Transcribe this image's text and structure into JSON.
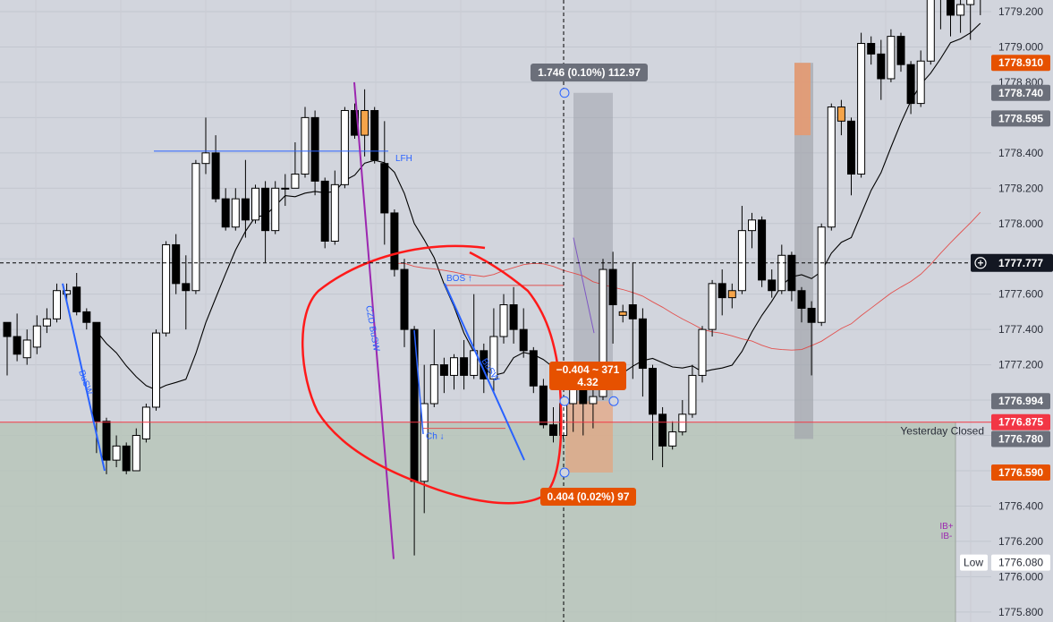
{
  "chart_data": {
    "type": "candlestick",
    "ylim": [
      1775.8,
      1779.3
    ],
    "y_ticks": [
      1779.2,
      1779.0,
      1778.8,
      1778.6,
      1778.4,
      1778.2,
      1778.0,
      1777.8,
      1777.6,
      1777.4,
      1777.2,
      1777.0,
      1776.8,
      1776.6,
      1776.4,
      1776.2,
      1776.0,
      1775.8
    ],
    "y_tick_labels": [
      "1779.200",
      "1779.000",
      "1778.800",
      "",
      "1778.400",
      "1778.200",
      "1778.000",
      "",
      "1777.600",
      "1777.400",
      "1777.200",
      "",
      "",
      "",
      "1776.400",
      "1776.200",
      "1776.000",
      "1775.800"
    ],
    "colors": {
      "up_fill": "#ffffff",
      "down_fill": "#000000",
      "highlight": "#f5a44a",
      "ma_fast": "#000000",
      "ma_slow": "#e53935",
      "annotation_blue": "#2962ff",
      "annotation_purple": "#9c27b0",
      "circle_red": "#ff1a1a",
      "badge_orange": "#e65100",
      "badge_red": "#f23645",
      "badge_gray": "#6b6f7a"
    },
    "candles": [
      [
        1777.44,
        1777.36,
        1777.14,
        1777.42
      ],
      [
        1777.36,
        1777.26,
        1777.22,
        1777.49
      ],
      [
        1777.24,
        1777.34,
        1777.2,
        1777.4
      ],
      [
        1777.3,
        1777.42,
        1777.26,
        1777.48
      ],
      [
        1777.42,
        1777.46,
        1777.38,
        1777.52
      ],
      [
        1777.46,
        1777.62,
        1777.44,
        1777.66
      ],
      [
        1777.6,
        1777.62,
        1777.56,
        1777.66
      ],
      [
        1777.64,
        1777.5,
        1777.48,
        1777.72
      ],
      [
        1777.5,
        1777.44,
        1777.4,
        1777.52
      ],
      [
        1777.44,
        1776.88,
        1776.7,
        1777.44
      ],
      [
        1776.88,
        1776.66,
        1776.58,
        1776.9
      ],
      [
        1776.66,
        1776.74,
        1776.62,
        1776.8
      ],
      [
        1776.74,
        1776.6,
        1776.58,
        1776.76
      ],
      [
        1776.6,
        1776.8,
        1776.6,
        1776.84
      ],
      [
        1776.78,
        1776.96,
        1776.76,
        1776.98
      ],
      [
        1776.96,
        1777.38,
        1776.94,
        1777.4
      ],
      [
        1777.38,
        1777.88,
        1777.36,
        1777.9
      ],
      [
        1777.88,
        1777.66,
        1777.6,
        1777.94
      ],
      [
        1777.66,
        1777.62,
        1777.4,
        1777.82
      ],
      [
        1777.62,
        1778.34,
        1777.6,
        1778.36
      ],
      [
        1778.34,
        1778.4,
        1778.28,
        1778.6
      ],
      [
        1778.4,
        1778.14,
        1778.12,
        1778.5
      ],
      [
        1778.14,
        1777.98,
        1777.96,
        1778.2
      ],
      [
        1777.98,
        1778.14,
        1777.96,
        1778.2
      ],
      [
        1778.14,
        1778.02,
        1777.92,
        1778.36
      ],
      [
        1778.02,
        1778.2,
        1778.0,
        1778.22
      ],
      [
        1778.2,
        1777.96,
        1777.78,
        1778.24
      ],
      [
        1777.96,
        1778.2,
        1777.94,
        1778.24
      ],
      [
        1778.2,
        1778.2,
        1778.1,
        1778.28
      ],
      [
        1778.2,
        1778.28,
        1778.2,
        1778.46
      ],
      [
        1778.28,
        1778.6,
        1778.26,
        1778.66
      ],
      [
        1778.6,
        1778.24,
        1778.16,
        1778.64
      ],
      [
        1778.24,
        1777.9,
        1777.86,
        1778.26
      ],
      [
        1777.9,
        1778.22,
        1777.88,
        1778.3
      ],
      [
        1778.22,
        1778.64,
        1778.2,
        1778.66
      ],
      [
        1778.64,
        1778.5,
        1778.48,
        1778.68
      ],
      [
        1778.5,
        1778.64,
        1778.38,
        1778.76
      ],
      [
        1778.64,
        1778.36,
        1778.34,
        1778.66
      ],
      [
        1778.34,
        1778.06,
        1777.88,
        1778.58
      ],
      [
        1778.06,
        1777.74,
        1777.7,
        1778.08
      ],
      [
        1777.74,
        1777.4,
        1777.3,
        1777.8
      ],
      [
        1777.4,
        1776.54,
        1776.12,
        1777.42
      ],
      [
        1776.54,
        1776.98,
        1776.36,
        1777.2
      ],
      [
        1776.98,
        1777.2,
        1776.96,
        1777.4
      ],
      [
        1777.2,
        1777.14,
        1777.04,
        1777.24
      ],
      [
        1777.14,
        1777.24,
        1777.06,
        1777.26
      ],
      [
        1777.24,
        1777.14,
        1777.06,
        1777.34
      ],
      [
        1777.14,
        1777.28,
        1777.12,
        1777.6
      ],
      [
        1777.28,
        1777.12,
        1777.04,
        1777.32
      ],
      [
        1777.12,
        1777.36,
        1777.04,
        1777.52
      ],
      [
        1777.36,
        1777.54,
        1777.32,
        1777.6
      ],
      [
        1777.54,
        1777.4,
        1777.32,
        1777.64
      ],
      [
        1777.4,
        1777.28,
        1777.24,
        1777.52
      ],
      [
        1777.28,
        1777.08,
        1777.04,
        1777.3
      ],
      [
        1777.08,
        1776.86,
        1776.84,
        1777.12
      ],
      [
        1776.86,
        1776.8,
        1776.76,
        1776.96
      ],
      [
        1776.8,
        1776.98,
        1776.78,
        1777.0
      ],
      [
        1776.98,
        1777.06,
        1776.82,
        1777.08
      ],
      [
        1777.06,
        1776.98,
        1776.8,
        1777.1
      ],
      [
        1776.98,
        1777.02,
        1776.84,
        1777.08
      ],
      [
        1777.02,
        1777.74,
        1777.0,
        1777.8
      ],
      [
        1777.74,
        1777.54,
        1777.32,
        1777.84
      ],
      [
        1777.5,
        1777.48,
        1777.44,
        1777.54
      ],
      [
        1777.54,
        1777.46,
        1777.12,
        1777.78
      ],
      [
        1777.46,
        1777.18,
        1777.02,
        1777.52
      ],
      [
        1777.18,
        1776.92,
        1776.66,
        1777.2
      ],
      [
        1776.92,
        1776.74,
        1776.62,
        1776.96
      ],
      [
        1776.74,
        1776.82,
        1776.72,
        1776.88
      ],
      [
        1776.82,
        1776.92,
        1776.8,
        1777.0
      ],
      [
        1776.92,
        1777.14,
        1776.9,
        1777.2
      ],
      [
        1777.14,
        1777.4,
        1777.1,
        1777.42
      ],
      [
        1777.4,
        1777.66,
        1777.36,
        1777.68
      ],
      [
        1777.66,
        1777.58,
        1777.48,
        1777.74
      ],
      [
        1777.58,
        1777.62,
        1777.52,
        1777.66
      ],
      [
        1777.62,
        1777.96,
        1777.6,
        1778.1
      ],
      [
        1777.96,
        1778.02,
        1777.86,
        1778.06
      ],
      [
        1778.02,
        1777.68,
        1777.64,
        1778.04
      ],
      [
        1777.68,
        1777.62,
        1777.58,
        1777.74
      ],
      [
        1777.62,
        1777.82,
        1777.6,
        1777.88
      ],
      [
        1777.82,
        1777.62,
        1777.56,
        1777.84
      ],
      [
        1777.62,
        1777.52,
        1777.44,
        1777.64
      ],
      [
        1777.52,
        1777.44,
        1777.14,
        1777.56
      ],
      [
        1777.44,
        1777.98,
        1777.42,
        1778.0
      ],
      [
        1777.98,
        1778.66,
        1777.96,
        1778.68
      ],
      [
        1778.66,
        1778.58,
        1778.5,
        1778.7
      ],
      [
        1778.58,
        1778.28,
        1778.16,
        1778.6
      ],
      [
        1778.28,
        1779.02,
        1778.26,
        1779.08
      ],
      [
        1779.02,
        1778.96,
        1778.9,
        1779.06
      ],
      [
        1778.96,
        1778.82,
        1778.7,
        1779.04
      ],
      [
        1778.82,
        1779.06,
        1778.8,
        1779.1
      ],
      [
        1779.06,
        1778.9,
        1778.86,
        1779.08
      ],
      [
        1778.9,
        1778.68,
        1778.62,
        1778.92
      ],
      [
        1778.68,
        1778.92,
        1778.66,
        1778.98
      ],
      [
        1778.92,
        1779.3,
        1778.9,
        1779.4
      ],
      [
        1779.3,
        1779.4,
        1779.1,
        1779.44
      ],
      [
        1779.3,
        1779.18,
        1779.06,
        1779.36
      ],
      [
        1779.18,
        1779.24,
        1779.08,
        1779.3
      ],
      [
        1779.24,
        1779.3,
        1779.04,
        1779.36
      ],
      [
        1779.3,
        1779.36,
        1779.18,
        1779.42
      ]
    ],
    "highlight_candles": [
      36,
      62,
      73,
      84,
      98
    ],
    "levels": {
      "lfh": 1778.41,
      "yesterday_close": 1776.875,
      "crosshair_price": 1777.777
    },
    "annotations": {
      "lfh": "LFH",
      "bos": "BOS ↑",
      "ch": "Ch ↓",
      "busw": "BuSW",
      "czd_busw": "CZD BuSW",
      "ib": "IB+",
      "ib_minus": "IB-",
      "yesterday_closed": "Yesterday Closed",
      "low": "Low"
    },
    "measure_top": "1.746 (0.10%) 112.97",
    "measure_mid_line1": "−0.404 ~ 371",
    "measure_mid_line2": "4.32",
    "measure_bottom": "0.404 (0.02%) 97",
    "price_badges": [
      {
        "label": "1778.910",
        "value": 1778.91,
        "style": "orange"
      },
      {
        "label": "1778.740",
        "value": 1778.74,
        "style": "gray"
      },
      {
        "label": "1778.595",
        "value": 1778.595,
        "style": "gray"
      },
      {
        "label": "1777.777",
        "value": 1777.777,
        "style": "crosshair"
      },
      {
        "label": "1776.994",
        "value": 1776.994,
        "style": "gray"
      },
      {
        "label": "1776.875",
        "value": 1776.875,
        "style": "red"
      },
      {
        "label": "1776.780",
        "value": 1776.78,
        "style": "gray"
      },
      {
        "label": "1776.590",
        "value": 1776.59,
        "style": "orange"
      },
      {
        "label": "1776.080",
        "value": 1776.08,
        "style": "low"
      }
    ]
  }
}
